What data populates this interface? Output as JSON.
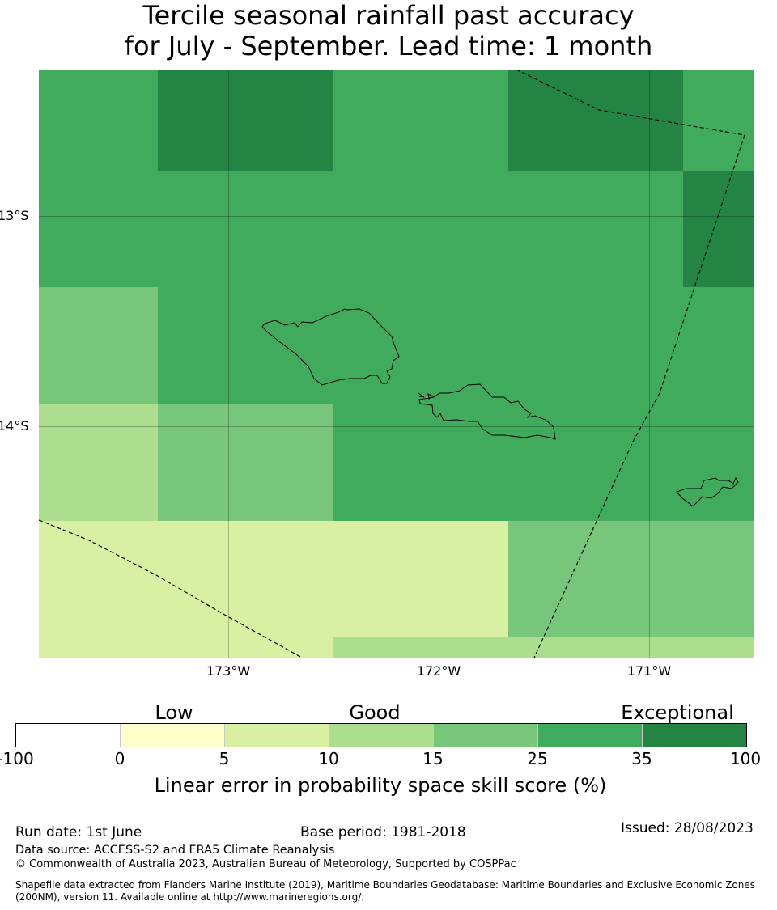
{
  "title": {
    "line1": "Tercile seasonal rainfall past accuracy",
    "line2": "for July - September. Lead time: 1 month"
  },
  "map": {
    "lat_ticks": [
      "13°S",
      "14°S"
    ],
    "lon_ticks": [
      "173°W",
      "172°W",
      "171°W"
    ],
    "lon_range": [
      -173.9,
      -170.5
    ],
    "lat_range": [
      -14.75,
      -12.3
    ],
    "grid_values": [
      [
        25,
        35,
        25,
        35,
        25
      ],
      [
        25,
        25,
        25,
        25,
        35
      ],
      [
        15,
        25,
        25,
        25,
        25
      ],
      [
        10,
        15,
        25,
        25,
        25
      ],
      [
        5,
        5,
        5,
        15,
        15
      ],
      [
        5,
        5,
        10,
        10,
        10
      ]
    ]
  },
  "legend": {
    "categories": [
      "Low",
      "Good",
      "Exceptional"
    ],
    "ticks": [
      "-100",
      "0",
      "5",
      "10",
      "15",
      "25",
      "35",
      "100"
    ],
    "colors": [
      "#ffffff",
      "#ffffcc",
      "#d9f0a3",
      "#addd8e",
      "#78c679",
      "#41ab5d",
      "#238443"
    ],
    "label": "Linear error in probability space skill score (%)"
  },
  "footer": {
    "run_date": "Run date: 1st June",
    "base_period": "Base period: 1981-2018",
    "issued": "Issued: 28/08/2023",
    "data_source": "Data source: ACCESS-S2 and ERA5 Climate Reanalysis",
    "copyright": "© Commonwealth of Australia 2023, Australian Bureau of Meteorology, Supported by COSPPac",
    "shapefile_line1": "Shapefile data extracted from Flanders Marine Institute (2019), Maritime Boundaries Geodatabase: Maritime Boundaries and Exclusive Economic Zones",
    "shapefile_line2": "(200NM), version 11. Available online at http://www.marineregions.org/."
  }
}
